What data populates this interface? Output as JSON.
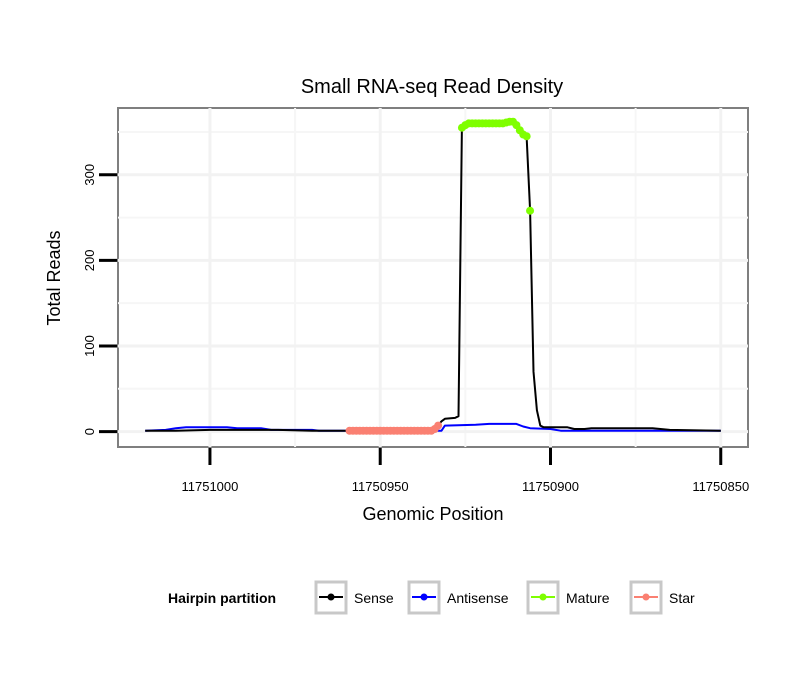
{
  "chart_data": {
    "type": "line",
    "title": "Small RNA-seq Read Density",
    "xlabel": "Genomic Position",
    "ylabel": "Total Reads",
    "xlim": [
      11751027,
      11750842
    ],
    "x_reversed": true,
    "ylim": [
      -18,
      378
    ],
    "x_ticks": [
      11751000,
      11750950,
      11750900,
      11750850
    ],
    "x_tick_labels": [
      "11751000",
      "11750950",
      "11750900",
      "11750850"
    ],
    "y_ticks": [
      0,
      100,
      200,
      300
    ],
    "y_tick_labels": [
      "0",
      "100",
      "200",
      "300"
    ],
    "grid": true,
    "legend": {
      "title": "Hairpin partition",
      "placement": "bottom",
      "entries": [
        {
          "label": "Sense",
          "color": "#000000"
        },
        {
          "label": "Antisense",
          "color": "#0000ff"
        },
        {
          "label": "Mature",
          "color": "#7fff00"
        },
        {
          "label": "Star",
          "color": "#fa8072"
        }
      ]
    },
    "series": [
      {
        "name": "Sense",
        "kind": "line",
        "color": "#000000",
        "points": [
          [
            11751019,
            1
          ],
          [
            11751010,
            1
          ],
          [
            11751000,
            2
          ],
          [
            11750980,
            2
          ],
          [
            11750970,
            1
          ],
          [
            11750959,
            1
          ],
          [
            11750935,
            1
          ],
          [
            11750934,
            3
          ],
          [
            11750933,
            7
          ],
          [
            11750932,
            12
          ],
          [
            11750931,
            15
          ],
          [
            11750928,
            16
          ],
          [
            11750927,
            18
          ],
          [
            11750926,
            355
          ],
          [
            11750925,
            358
          ],
          [
            11750924,
            360
          ],
          [
            11750914,
            360
          ],
          [
            11750913,
            361
          ],
          [
            11750912,
            362
          ],
          [
            11750911,
            362
          ],
          [
            11750910,
            358
          ],
          [
            11750909,
            352
          ],
          [
            11750908,
            347
          ],
          [
            11750907,
            345
          ],
          [
            11750906,
            258
          ],
          [
            11750905,
            70
          ],
          [
            11750904,
            25
          ],
          [
            11750903,
            7
          ],
          [
            11750902,
            5
          ],
          [
            11750895,
            5
          ],
          [
            11750893,
            3
          ],
          [
            11750890,
            3
          ],
          [
            11750888,
            4
          ],
          [
            11750870,
            4
          ],
          [
            11750865,
            2
          ],
          [
            11750850,
            1
          ]
        ]
      },
      {
        "name": "Antisense",
        "kind": "line",
        "color": "#0000ff",
        "points": [
          [
            11751019,
            1
          ],
          [
            11751013,
            2
          ],
          [
            11751010,
            4
          ],
          [
            11751007,
            5
          ],
          [
            11750995,
            5
          ],
          [
            11750992,
            4
          ],
          [
            11750985,
            4
          ],
          [
            11750982,
            2
          ],
          [
            11750970,
            2
          ],
          [
            11750968,
            1
          ],
          [
            11750932,
            1
          ],
          [
            11750931,
            7
          ],
          [
            11750922,
            8
          ],
          [
            11750918,
            9
          ],
          [
            11750910,
            9
          ],
          [
            11750908,
            6
          ],
          [
            11750906,
            4
          ],
          [
            11750900,
            3
          ],
          [
            11750897,
            1
          ],
          [
            11750850,
            1
          ]
        ]
      },
      {
        "name": "Mature",
        "kind": "points",
        "color": "#7fff00",
        "points": [
          [
            11750926,
            355
          ],
          [
            11750925,
            358
          ],
          [
            11750924,
            360
          ],
          [
            11750923,
            360
          ],
          [
            11750922,
            360
          ],
          [
            11750921,
            360
          ],
          [
            11750920,
            360
          ],
          [
            11750919,
            360
          ],
          [
            11750918,
            360
          ],
          [
            11750917,
            360
          ],
          [
            11750916,
            360
          ],
          [
            11750915,
            360
          ],
          [
            11750914,
            360
          ],
          [
            11750913,
            361
          ],
          [
            11750912,
            362
          ],
          [
            11750911,
            362
          ],
          [
            11750910,
            358
          ],
          [
            11750909,
            352
          ],
          [
            11750908,
            347
          ],
          [
            11750907,
            345
          ],
          [
            11750906,
            258
          ]
        ]
      },
      {
        "name": "Star",
        "kind": "points",
        "color": "#fa8072",
        "points": [
          [
            11750959,
            1
          ],
          [
            11750958,
            1
          ],
          [
            11750957,
            1
          ],
          [
            11750956,
            1
          ],
          [
            11750955,
            1
          ],
          [
            11750954,
            1
          ],
          [
            11750953,
            1
          ],
          [
            11750952,
            1
          ],
          [
            11750951,
            1
          ],
          [
            11750950,
            1
          ],
          [
            11750949,
            1
          ],
          [
            11750948,
            1
          ],
          [
            11750947,
            1
          ],
          [
            11750946,
            1
          ],
          [
            11750945,
            1
          ],
          [
            11750944,
            1
          ],
          [
            11750943,
            1
          ],
          [
            11750942,
            1
          ],
          [
            11750941,
            1
          ],
          [
            11750940,
            1
          ],
          [
            11750939,
            1
          ],
          [
            11750938,
            1
          ],
          [
            11750937,
            1
          ],
          [
            11750936,
            1
          ],
          [
            11750935,
            1
          ],
          [
            11750934,
            3
          ],
          [
            11750933,
            7
          ]
        ]
      }
    ]
  }
}
